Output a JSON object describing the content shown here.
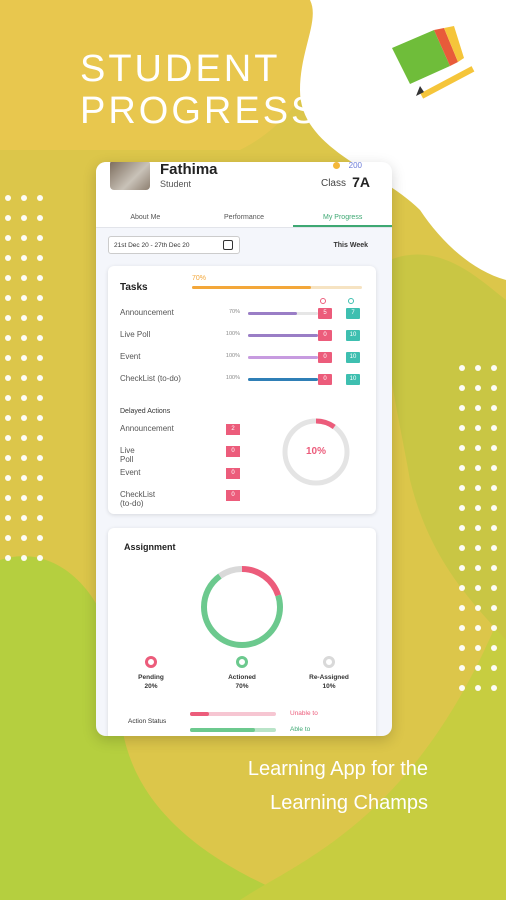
{
  "promo": {
    "headline_line1": "STUDENT",
    "headline_line2": "PROGRESS",
    "tagline_line1": "Learning App for the",
    "tagline_line2": "Learning Champs"
  },
  "colors": {
    "accent_green": "#3ea873",
    "badge_red": "#ec5c7b",
    "badge_teal": "#3ebfb0",
    "progress_orange": "#f3a73a"
  },
  "profile": {
    "name": "Fathima",
    "role": "Student",
    "coins": "200",
    "class_label": "Class",
    "class_value": "7A"
  },
  "tabs": [
    {
      "label": "About Me",
      "active": false
    },
    {
      "label": "Performance",
      "active": false
    },
    {
      "label": "My Progress",
      "active": true
    }
  ],
  "date_range": "21st Dec 20 - 27th Dec 20",
  "period_label": "This Week",
  "tasks": {
    "title": "Tasks",
    "overall_percent": "70%",
    "overall_value": 0.7,
    "rows": [
      {
        "label": "Announcement",
        "percent": "70%",
        "value": 0.7,
        "color": "#9a7ec6",
        "red": "5",
        "teal": "7"
      },
      {
        "label": "Live Poll",
        "percent": "100%",
        "value": 1.0,
        "color": "#9a7ec6",
        "red": "0",
        "teal": "10"
      },
      {
        "label": "Event",
        "percent": "100%",
        "value": 1.0,
        "color": "#c79be0",
        "red": "0",
        "teal": "10"
      },
      {
        "label": "CheckList (to-do)",
        "percent": "100%",
        "value": 1.0,
        "color": "#2f7fb6",
        "red": "0",
        "teal": "10"
      }
    ]
  },
  "delayed": {
    "title": "Delayed Actions",
    "rows": [
      {
        "label": "Announcement",
        "count": "2"
      },
      {
        "label": "Live Poll",
        "count": "0"
      },
      {
        "label": "Event",
        "count": "0"
      },
      {
        "label": "CheckList (to-do)",
        "count": "0"
      }
    ],
    "percent_label": "10%",
    "percent_value": 0.1
  },
  "assignment": {
    "title": "Assignment",
    "segments": [
      {
        "label": "Pending",
        "value_label": "20%",
        "value": 0.2,
        "color": "#ec5c7b"
      },
      {
        "label": "Actioned",
        "value_label": "70%",
        "value": 0.7,
        "color": "#6cc98e"
      },
      {
        "label": "Re-Assigned",
        "value_label": "10%",
        "value": 0.1,
        "color": "#d9d9d9"
      }
    ],
    "action_status_label": "Action Status",
    "status_text_1": "Unable to",
    "status_text_2": "Able to"
  }
}
